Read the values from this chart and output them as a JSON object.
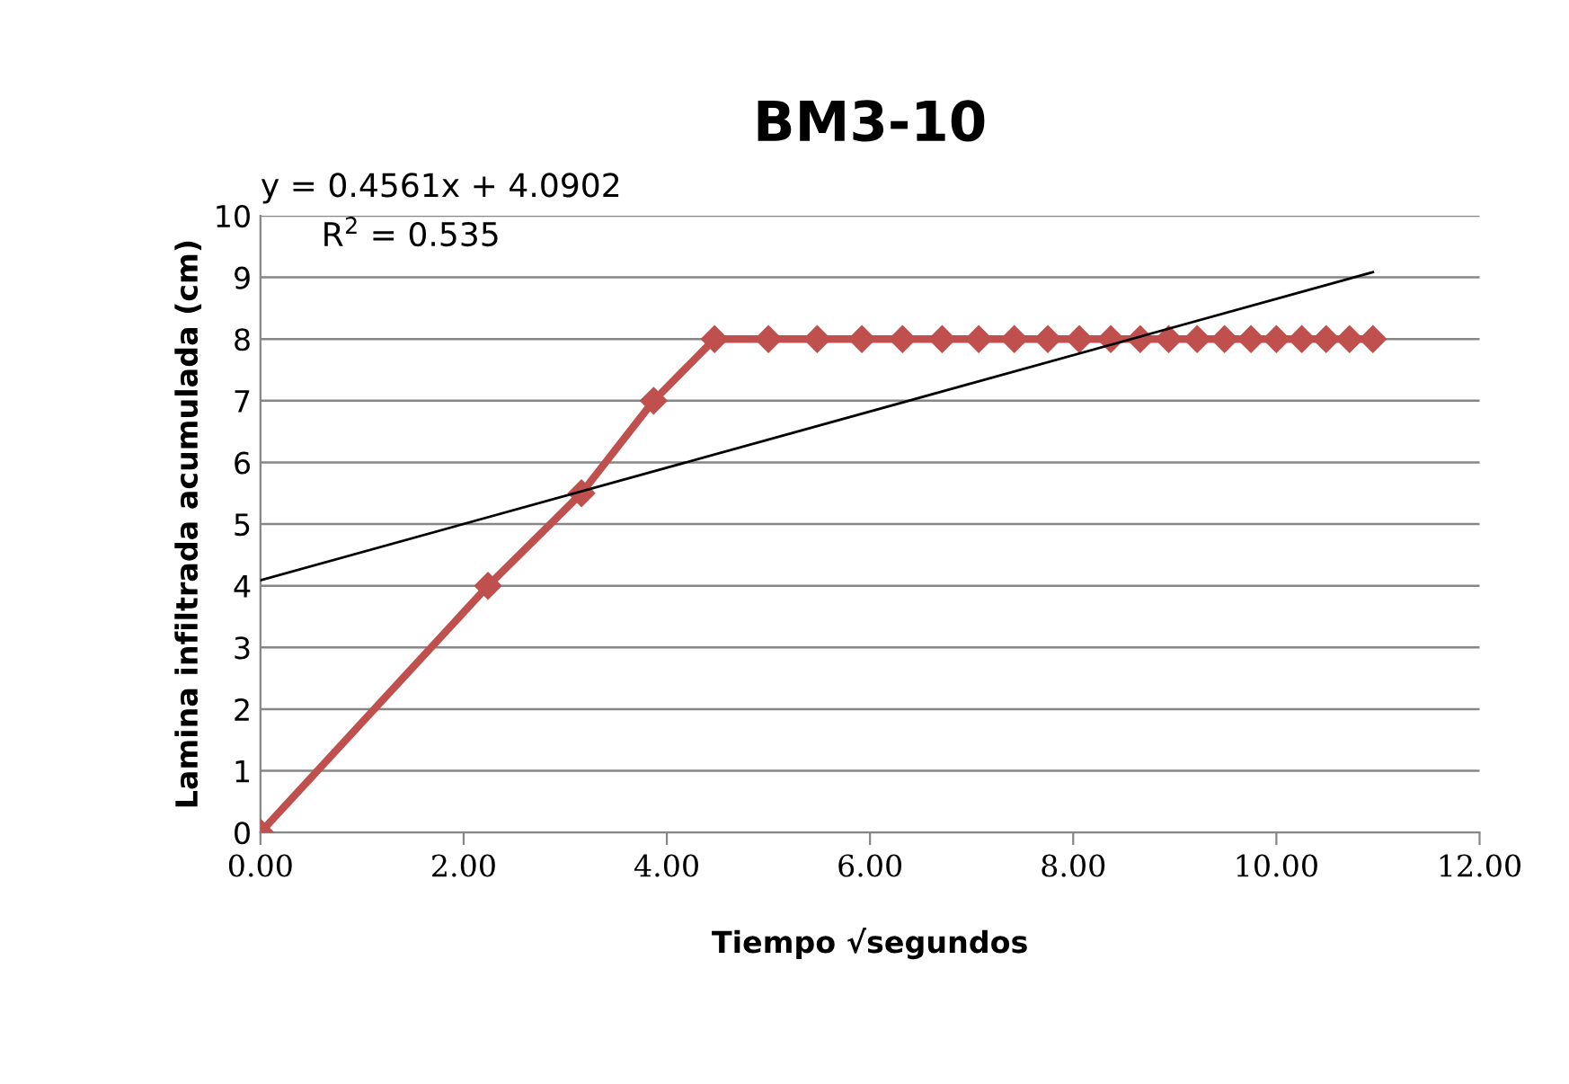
{
  "chart_data": {
    "type": "line",
    "title": "BM3-10",
    "xlabel": "Tiempo √segundos",
    "ylabel": "Lamina infiltrada acumulada (cm)",
    "series": [
      {
        "color": "#c0504d",
        "marker": "diamond",
        "x": [
          0,
          2.24,
          3.16,
          3.87,
          4.47,
          5.0,
          5.48,
          5.92,
          6.32,
          6.71,
          7.07,
          7.42,
          7.75,
          8.06,
          8.37,
          8.66,
          8.94,
          9.22,
          9.49,
          9.75,
          10.0,
          10.25,
          10.49,
          10.72,
          10.95
        ],
        "values": [
          0,
          4,
          5.5,
          7,
          8,
          8,
          8,
          8,
          8,
          8,
          8,
          8,
          8,
          8,
          8,
          8,
          8,
          8,
          8,
          8,
          8,
          8,
          8,
          8,
          8
        ]
      },
      {
        "type": "line",
        "color": "#000000",
        "marker": "none",
        "x": [
          0,
          10.95
        ],
        "values": [
          4.0902,
          9.0845
        ]
      }
    ],
    "annotations": [
      "y = 0.4561x + 4.0902",
      "R$^{2}$ = 0.535"
    ],
    "xlim": [
      0,
      12
    ],
    "xticks": [
      {
        "value": 0,
        "label": "0.00"
      },
      {
        "value": 2,
        "label": "2.00"
      },
      {
        "value": 4,
        "label": "4.00"
      },
      {
        "value": 6,
        "label": "6.00"
      },
      {
        "value": 8,
        "label": "8.00"
      },
      {
        "value": 10,
        "label": "10.00"
      },
      {
        "value": 12,
        "label": "12.00"
      }
    ],
    "ylim": [
      0,
      10
    ],
    "yticks": [
      0,
      1,
      2,
      3,
      4,
      5,
      6,
      7,
      8,
      9,
      10
    ],
    "grid": "y",
    "legend": false
  }
}
